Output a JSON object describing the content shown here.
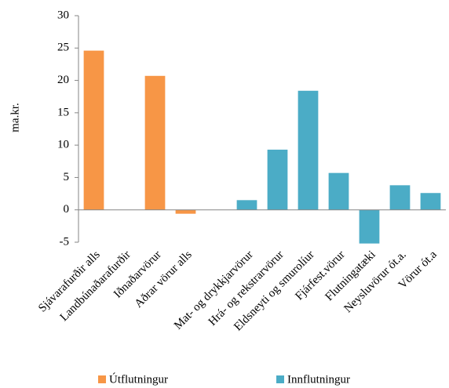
{
  "chart_data": {
    "type": "bar",
    "y_label": "ma.kr.",
    "categories": [
      "Sjávarafurðir alls",
      "Landbúnaðarafurðir",
      "Iðnaðarvörur",
      "Aðrar vörur alls",
      null,
      "Mat- og drykkjarvörur",
      "Hrá- og rekstrarvörur",
      "Eldsneyti og smurolíur",
      "Fjárfest.vörur",
      "Flutningatæki",
      "Neysluvörur ót.a.",
      "Vörur ót.a"
    ],
    "series": [
      {
        "name": "Útflutningur",
        "color": "#f79646",
        "values": [
          24.6,
          null,
          20.7,
          -0.6,
          null,
          null,
          null,
          null,
          null,
          null,
          null,
          null
        ]
      },
      {
        "name": "Innflutningur",
        "color": "#4bacc6",
        "values": [
          null,
          null,
          null,
          null,
          null,
          1.5,
          9.3,
          18.4,
          5.7,
          -5.2,
          3.8,
          2.6
        ]
      }
    ],
    "ylim": [
      -5,
      30
    ],
    "yticks": [
      -5,
      0,
      5,
      10,
      15,
      20,
      25,
      30
    ],
    "grid": false
  }
}
